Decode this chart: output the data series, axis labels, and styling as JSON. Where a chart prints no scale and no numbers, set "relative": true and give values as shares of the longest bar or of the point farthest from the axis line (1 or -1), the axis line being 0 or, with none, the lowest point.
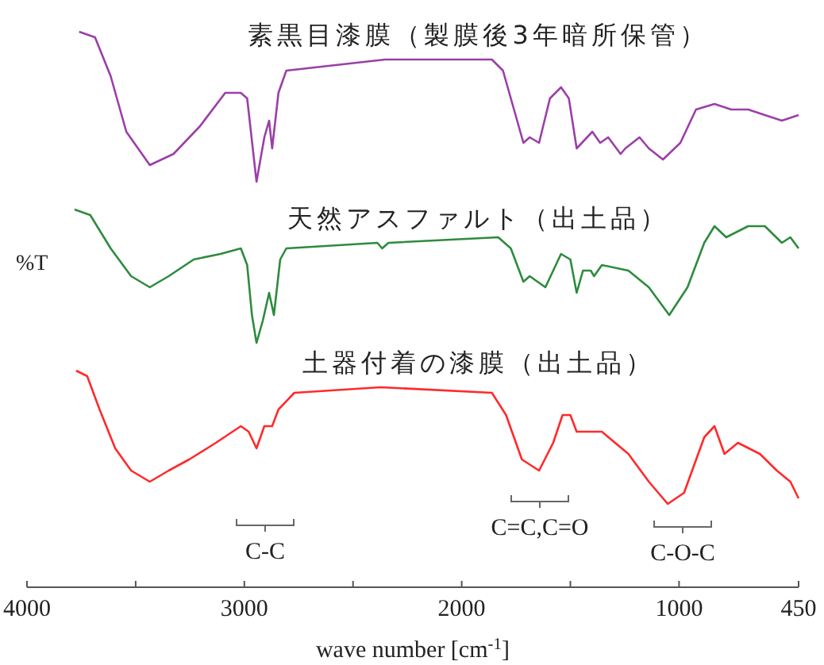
{
  "chart_data": {
    "type": "line",
    "xlabel": "wave number [cm$^{-1}$]",
    "ylabel": "%T",
    "xlim": [
      4000,
      450
    ],
    "xticks": [
      4000,
      {
        "value": 3500,
        "label": null
      },
      3000,
      {
        "value": 2500,
        "label": null
      },
      2000,
      {
        "value": 1500,
        "label": null
      },
      1000,
      450
    ],
    "relative": true,
    "series": [
      {
        "name": "素黒目漆膜（製膜後3年暗所保管）",
        "color": "#9b3fa8",
        "x": [
          3760,
          3687,
          3615,
          3543,
          3435,
          3326,
          3204,
          3088,
          3016,
          2987,
          2944,
          2908,
          2886,
          2872,
          2843,
          2807,
          2352,
          1861,
          1810,
          1716,
          1687,
          1644,
          1594,
          1543,
          1507,
          1471,
          1399,
          1363,
          1326,
          1269,
          1247,
          1182,
          1139,
          1074,
          994,
          922,
          837,
          760,
          682,
          605,
          527,
          450
        ],
        "values": [
          1.0,
          0.99,
          0.92,
          0.82,
          0.76,
          0.78,
          0.83,
          0.89,
          0.89,
          0.88,
          0.73,
          0.81,
          0.84,
          0.79,
          0.89,
          0.93,
          0.95,
          0.95,
          0.93,
          0.8,
          0.81,
          0.8,
          0.88,
          0.9,
          0.88,
          0.79,
          0.82,
          0.8,
          0.81,
          0.78,
          0.79,
          0.81,
          0.79,
          0.77,
          0.8,
          0.86,
          0.87,
          0.86,
          0.86,
          0.85,
          0.84,
          0.85
        ]
      },
      {
        "name": "天然アスファルト（出土品）",
        "color": "#2e8b3e",
        "x": [
          3781,
          3709,
          3615,
          3521,
          3435,
          3348,
          3233,
          3110,
          3016,
          2987,
          2965,
          2944,
          2915,
          2886,
          2864,
          2835,
          2807,
          2388,
          2366,
          2337,
          1832,
          1774,
          1716,
          1687,
          1615,
          1543,
          1500,
          1471,
          1442,
          1406,
          1391,
          1355,
          1233,
          1139,
          1045,
          961,
          884,
          837,
          783,
          682,
          605,
          527,
          488,
          450
        ],
        "values": [
          0.68,
          0.67,
          0.61,
          0.56,
          0.54,
          0.56,
          0.59,
          0.6,
          0.61,
          0.58,
          0.49,
          0.44,
          0.48,
          0.53,
          0.49,
          0.59,
          0.61,
          0.62,
          0.61,
          0.62,
          0.63,
          0.61,
          0.55,
          0.56,
          0.54,
          0.6,
          0.59,
          0.53,
          0.57,
          0.57,
          0.56,
          0.58,
          0.57,
          0.54,
          0.49,
          0.54,
          0.62,
          0.65,
          0.63,
          0.65,
          0.65,
          0.62,
          0.63,
          0.61
        ]
      },
      {
        "name": "土器付着の漆膜（出土品）",
        "color": "#ff2a2a",
        "x": [
          3774,
          3723,
          3666,
          3594,
          3521,
          3435,
          3348,
          3254,
          3131,
          3016,
          2980,
          2944,
          2908,
          2886,
          2872,
          2843,
          2770,
          2373,
          1861,
          1796,
          1723,
          1644,
          1579,
          1536,
          1500,
          1471,
          1355,
          1233,
          1139,
          1052,
          977,
          884,
          837,
          791,
          729,
          628,
          550,
          488,
          450
        ],
        "values": [
          0.39,
          0.38,
          0.32,
          0.25,
          0.21,
          0.19,
          0.21,
          0.23,
          0.26,
          0.29,
          0.28,
          0.25,
          0.29,
          0.29,
          0.29,
          0.32,
          0.35,
          0.36,
          0.35,
          0.31,
          0.23,
          0.21,
          0.26,
          0.31,
          0.31,
          0.28,
          0.28,
          0.24,
          0.19,
          0.15,
          0.17,
          0.27,
          0.29,
          0.24,
          0.26,
          0.24,
          0.21,
          0.19,
          0.16
        ]
      }
    ],
    "annotations": [
      "C-C",
      "C=C,C=O",
      "C-O-C"
    ]
  }
}
